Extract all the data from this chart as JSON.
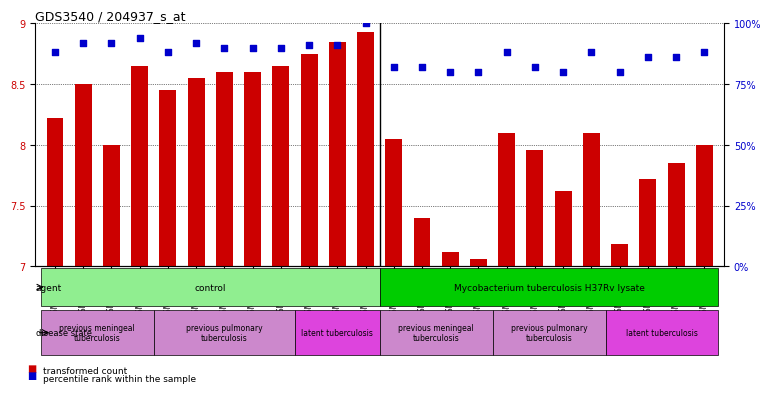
{
  "title": "GDS3540 / 204937_s_at",
  "samples": [
    "GSM280335",
    "GSM280341",
    "GSM280351",
    "GSM280353",
    "GSM280333",
    "GSM280339",
    "GSM280347",
    "GSM280349",
    "GSM280331",
    "GSM280337",
    "GSM280343",
    "GSM280345",
    "GSM280336",
    "GSM280342",
    "GSM280352",
    "GSM280354",
    "GSM280334",
    "GSM280340",
    "GSM280348",
    "GSM280350",
    "GSM280332",
    "GSM280338",
    "GSM280344",
    "GSM280346"
  ],
  "bar_values": [
    8.22,
    8.5,
    8.0,
    8.65,
    8.45,
    8.55,
    8.6,
    8.6,
    8.65,
    8.75,
    8.85,
    8.93,
    8.05,
    7.4,
    7.12,
    7.06,
    8.1,
    7.96,
    7.62,
    8.1,
    7.18,
    7.72,
    7.85,
    8.0
  ],
  "percentile_values": [
    88,
    92,
    92,
    94,
    88,
    92,
    90,
    90,
    90,
    91,
    91,
    100,
    82,
    82,
    80,
    80,
    88,
    82,
    80,
    88,
    80,
    86,
    86,
    88
  ],
  "bar_color": "#cc0000",
  "percentile_color": "#0000cc",
  "ylim_left": [
    7,
    9
  ],
  "ylim_right": [
    0,
    100
  ],
  "yticks_left": [
    7,
    7.5,
    8,
    8.5,
    9
  ],
  "yticks_right": [
    0,
    25,
    50,
    75,
    100
  ],
  "ytick_labels_right": [
    "0%",
    "25%",
    "50%",
    "75%",
    "100%"
  ],
  "agent_row": {
    "label": "agent",
    "groups": [
      {
        "text": "control",
        "start": 0,
        "end": 11,
        "color": "#90ee90"
      },
      {
        "text": "Mycobacterium tuberculosis H37Rv lysate",
        "start": 12,
        "end": 23,
        "color": "#00cc00"
      }
    ]
  },
  "disease_row": {
    "label": "disease state",
    "groups": [
      {
        "text": "previous meningeal\ntuberculosis",
        "start": 0,
        "end": 3,
        "color": "#cc88cc"
      },
      {
        "text": "previous pulmonary\ntuberculosis",
        "start": 4,
        "end": 8,
        "color": "#cc88cc"
      },
      {
        "text": "latent tuberculosis",
        "start": 9,
        "end": 11,
        "color": "#dd44dd"
      },
      {
        "text": "previous meningeal\ntuberculosis",
        "start": 12,
        "end": 15,
        "color": "#cc88cc"
      },
      {
        "text": "previous pulmonary\ntuberculosis",
        "start": 16,
        "end": 19,
        "color": "#cc88cc"
      },
      {
        "text": "latent tuberculosis",
        "start": 20,
        "end": 23,
        "color": "#dd44dd"
      }
    ]
  },
  "legend": [
    {
      "label": "transformed count",
      "color": "#cc0000",
      "marker": "s"
    },
    {
      "label": "percentile rank within the sample",
      "color": "#0000cc",
      "marker": "s"
    }
  ]
}
